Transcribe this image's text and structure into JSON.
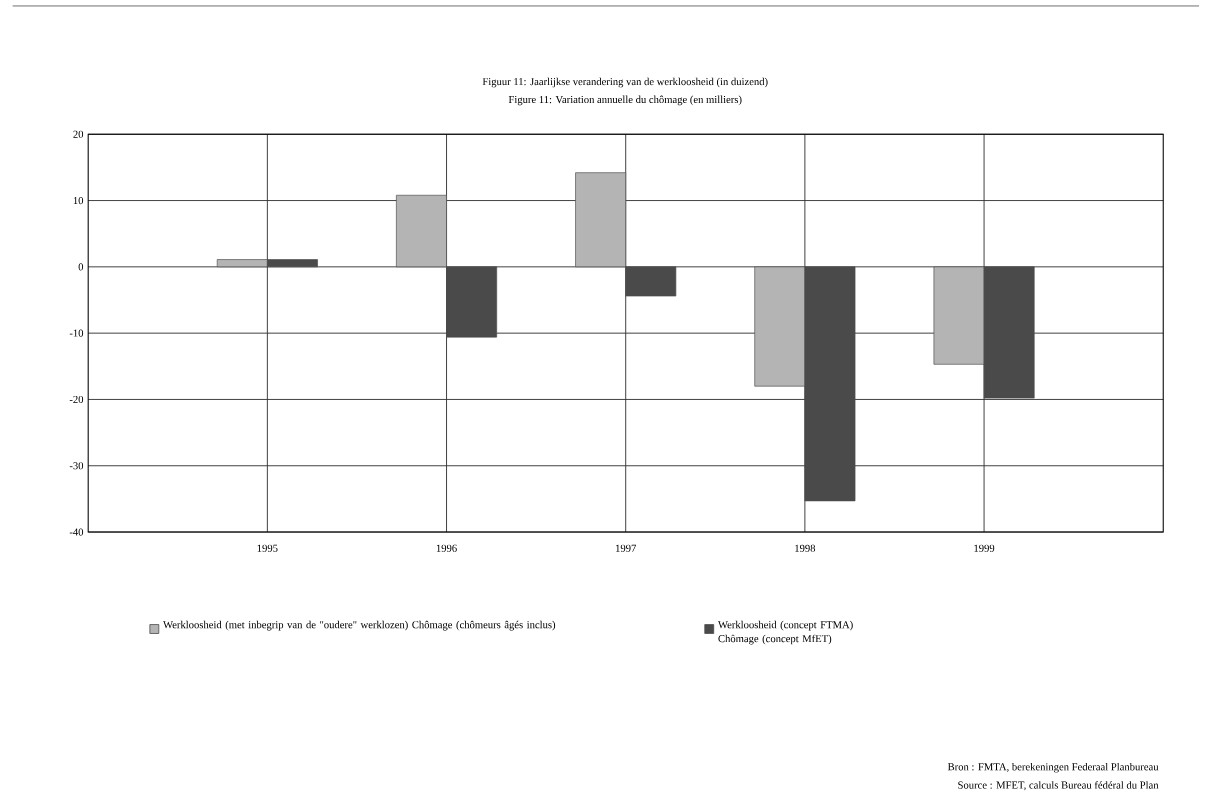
{
  "chart_data": {
    "type": "bar",
    "title": "Figuur 11: Jaarlijkse verandering van de werkloosheid (in duizend)",
    "subtitle": "Figure 11: Variation annuelle du chômage (en milliers)",
    "categories": [
      "1995",
      "1996",
      "1997",
      "1998",
      "1999"
    ],
    "series": [
      {
        "name": "Werkloosheid (met inbegrip van de \"oudere\" werklozen) Chômage (chômeurs âgés inclus)",
        "color": "#b4b4b4",
        "values": [
          1.1,
          10.8,
          14.2,
          -18.0,
          -14.7
        ]
      },
      {
        "name": "Werkloosheid (concept FTMA) Chômage (concept MfET)",
        "color": "#4a4a4a",
        "values": [
          1.1,
          -10.6,
          -4.4,
          -35.3,
          -19.8
        ]
      }
    ],
    "ylim": [
      -40,
      20
    ],
    "yticks": [
      -40,
      -30,
      -20,
      -10,
      0,
      10,
      20
    ],
    "grid": true,
    "legend": "bottom",
    "annotations": [
      "Bron : FMTA, berekeningen Federaal Planbureau",
      "Source : MFET, calculs Bureau fédéral du Plan"
    ]
  }
}
